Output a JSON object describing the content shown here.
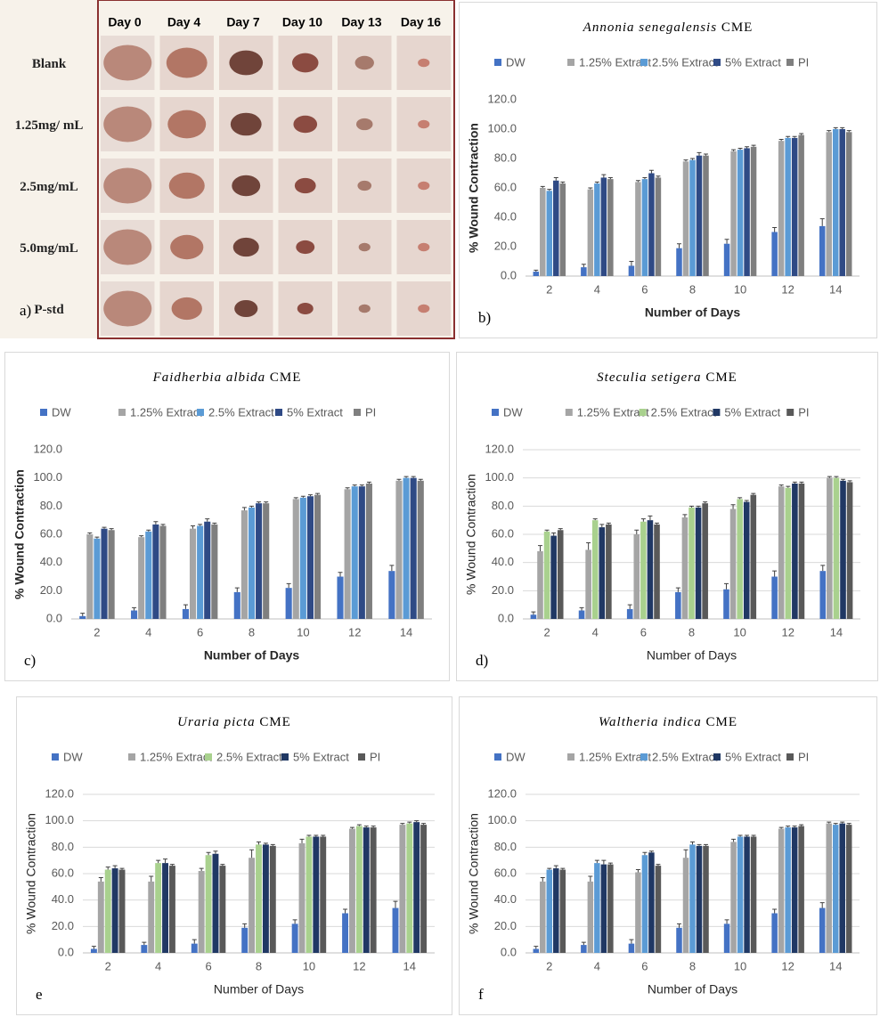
{
  "photo_grid": {
    "panel_label": "a)",
    "columns": [
      "Day 0",
      "Day 4",
      "Day 7",
      "Day 10",
      "Day 13",
      "Day 16"
    ],
    "rows": [
      "Blank",
      "1.25mg/ mL",
      "2.5mg/mL",
      "5.0mg/mL",
      "P-std"
    ]
  },
  "chart_data": [
    {
      "type": "bar",
      "title": {
        "species": "Annonia senegalensis",
        "suffix": "CME"
      },
      "panel_label": "b)",
      "x_label": "Number of Days",
      "y_label": "% Wound Contraction",
      "grid": false,
      "categories": [
        "2",
        "4",
        "6",
        "8",
        "10",
        "12",
        "14"
      ],
      "ylim": [
        0,
        120
      ],
      "yticks": [
        {
          "value": 0,
          "label": "0.0"
        },
        {
          "value": 20,
          "label": "20.0"
        },
        {
          "value": 40,
          "label": "40.0"
        },
        {
          "value": 60,
          "label": "60.0"
        },
        {
          "value": 80,
          "label": "80.0"
        },
        {
          "value": 100,
          "label": "100.0"
        },
        {
          "value": 120,
          "label": "120.0"
        }
      ],
      "series": [
        {
          "name": "DW",
          "color": "#4472c4",
          "values": [
            3,
            6,
            7,
            19,
            22,
            30,
            34
          ],
          "errors": [
            1,
            2,
            3,
            3,
            3,
            3,
            5
          ]
        },
        {
          "name": "1.25% Extract",
          "color": "#a5a5a5",
          "values": [
            60,
            59,
            64,
            78,
            85,
            92,
            98
          ],
          "errors": [
            1,
            1,
            1,
            1,
            1,
            1,
            1
          ]
        },
        {
          "name": "2.5% Extract",
          "color": "#5b9bd5",
          "values": [
            58,
            63,
            66,
            79,
            86,
            94,
            100
          ],
          "errors": [
            1,
            1,
            1,
            1,
            1,
            1,
            1
          ]
        },
        {
          "name": "5% Extract",
          "color": "#2f4a85",
          "values": [
            65,
            67,
            70,
            82,
            87,
            94,
            100
          ],
          "errors": [
            2,
            2,
            2,
            2,
            1,
            1,
            1
          ]
        },
        {
          "name": "PI",
          "color": "#7f7f7f",
          "values": [
            63,
            66,
            67,
            82,
            88,
            96,
            98
          ],
          "errors": [
            1,
            1,
            1,
            1,
            1,
            1,
            1
          ]
        }
      ]
    },
    {
      "type": "bar",
      "title": {
        "species": "Faidherbia albida",
        "suffix": "CME"
      },
      "panel_label": "c)",
      "x_label": "Number of Days",
      "y_label": "% Wound Contraction",
      "grid": false,
      "categories": [
        "2",
        "4",
        "6",
        "8",
        "10",
        "12",
        "14"
      ],
      "ylim": [
        0,
        120
      ],
      "yticks": [
        {
          "value": 0,
          "label": "0.0"
        },
        {
          "value": 20,
          "label": "20.0"
        },
        {
          "value": 40,
          "label": "40.0"
        },
        {
          "value": 60,
          "label": "60.0"
        },
        {
          "value": 80,
          "label": "80.0"
        },
        {
          "value": 100,
          "label": "100.0"
        },
        {
          "value": 120,
          "label": "120.0"
        }
      ],
      "series": [
        {
          "name": "DW",
          "color": "#4472c4",
          "values": [
            2,
            6,
            7,
            19,
            22,
            30,
            34
          ],
          "errors": [
            2,
            2,
            3,
            3,
            3,
            3,
            4
          ]
        },
        {
          "name": "1.25% Extract",
          "color": "#a5a5a5",
          "values": [
            60,
            58,
            64,
            77,
            85,
            92,
            98
          ],
          "errors": [
            1,
            1,
            2,
            2,
            1,
            1,
            1
          ]
        },
        {
          "name": "2.5% Extract",
          "color": "#5b9bd5",
          "values": [
            57,
            62,
            66,
            79,
            86,
            94,
            100
          ],
          "errors": [
            1,
            1,
            1,
            1,
            1,
            1,
            1
          ]
        },
        {
          "name": "5% Extract",
          "color": "#2f4a85",
          "values": [
            64,
            67,
            69,
            82,
            87,
            94,
            100
          ],
          "errors": [
            1,
            2,
            2,
            1,
            1,
            1,
            1
          ]
        },
        {
          "name": "PI",
          "color": "#7f7f7f",
          "values": [
            63,
            66,
            67,
            82,
            88,
            96,
            98
          ],
          "errors": [
            1,
            1,
            1,
            1,
            1,
            1,
            1
          ]
        }
      ]
    },
    {
      "type": "bar",
      "title": {
        "species": "Steculia setigera",
        "suffix": "CME"
      },
      "panel_label": "d)",
      "x_label": "Number of Days",
      "y_label": "% Wound Contraction",
      "grid": true,
      "categories": [
        "2",
        "4",
        "6",
        "8",
        "10",
        "12",
        "14"
      ],
      "ylim": [
        0,
        120
      ],
      "yticks": [
        {
          "value": 0,
          "label": "0.0"
        },
        {
          "value": 20,
          "label": "20.0"
        },
        {
          "value": 40,
          "label": "40.0"
        },
        {
          "value": 60,
          "label": "60.0"
        },
        {
          "value": 80,
          "label": "80.0"
        },
        {
          "value": 100,
          "label": "100.0"
        },
        {
          "value": 120,
          "label": "120.0"
        }
      ],
      "series": [
        {
          "name": "DW",
          "color": "#4472c4",
          "values": [
            3,
            6,
            7,
            19,
            21,
            30,
            34
          ],
          "errors": [
            2,
            2,
            3,
            3,
            4,
            4,
            4
          ]
        },
        {
          "name": "1.25% Extract",
          "color": "#a5a5a5",
          "values": [
            48,
            49,
            60,
            72,
            78,
            94,
            100
          ],
          "errors": [
            4,
            5,
            3,
            2,
            3,
            1,
            1
          ]
        },
        {
          "name": "2.5% Extract",
          "color": "#a9d18e",
          "values": [
            62,
            70,
            69,
            79,
            85,
            93,
            100
          ],
          "errors": [
            1,
            1,
            2,
            1,
            1,
            1,
            1
          ]
        },
        {
          "name": "5% Extract",
          "color": "#203864",
          "values": [
            59,
            65,
            70,
            79,
            83,
            96,
            98
          ],
          "errors": [
            2,
            2,
            3,
            1,
            1,
            1,
            1
          ]
        },
        {
          "name": "PI",
          "color": "#595959",
          "values": [
            63,
            67,
            67,
            82,
            88,
            96,
            97
          ],
          "errors": [
            1,
            1,
            1,
            1,
            1,
            1,
            1
          ]
        }
      ]
    },
    {
      "type": "bar",
      "title": {
        "species": "Uraria picta",
        "suffix": "CME"
      },
      "panel_label": "e",
      "x_label": "Number of Days",
      "y_label": "% Wound Contraction",
      "grid": true,
      "categories": [
        "2",
        "4",
        "6",
        "8",
        "10",
        "12",
        "14"
      ],
      "ylim": [
        0,
        120
      ],
      "yticks": [
        {
          "value": 0,
          "label": "0.0"
        },
        {
          "value": 20,
          "label": "20.0"
        },
        {
          "value": 40,
          "label": "40.0"
        },
        {
          "value": 60,
          "label": "60.0"
        },
        {
          "value": 80,
          "label": "80.0"
        },
        {
          "value": 100,
          "label": "100.0"
        },
        {
          "value": 120,
          "label": "120.0"
        }
      ],
      "series": [
        {
          "name": "DW",
          "color": "#4472c4",
          "values": [
            3,
            6,
            7,
            19,
            22,
            30,
            34
          ],
          "errors": [
            2,
            2,
            3,
            3,
            3,
            3,
            5
          ]
        },
        {
          "name": "1.25% Extract",
          "color": "#a5a5a5",
          "values": [
            54,
            54,
            62,
            72,
            83,
            94,
            97
          ],
          "errors": [
            3,
            4,
            2,
            6,
            3,
            1,
            1
          ]
        },
        {
          "name": "2.5% Extract",
          "color": "#a9d18e",
          "values": [
            63,
            68,
            74,
            82,
            88,
            96,
            98
          ],
          "errors": [
            2,
            2,
            2,
            2,
            1,
            1,
            1
          ]
        },
        {
          "name": "5% Extract",
          "color": "#203864",
          "values": [
            64,
            68,
            75,
            82,
            88,
            95,
            99
          ],
          "errors": [
            2,
            3,
            2,
            1,
            1,
            1,
            1
          ]
        },
        {
          "name": "PI",
          "color": "#595959",
          "values": [
            63,
            66,
            66,
            81,
            88,
            95,
            97
          ],
          "errors": [
            1,
            1,
            1,
            1,
            1,
            1,
            1
          ]
        }
      ]
    },
    {
      "type": "bar",
      "title": {
        "species": "Waltheria indica",
        "suffix": "CME"
      },
      "panel_label": "f",
      "x_label": "Number of Days",
      "y_label": "% Wound Contraction",
      "grid": true,
      "categories": [
        "2",
        "4",
        "6",
        "8",
        "10",
        "12",
        "14"
      ],
      "ylim": [
        0,
        120
      ],
      "yticks": [
        {
          "value": 0,
          "label": "0.0"
        },
        {
          "value": 20,
          "label": "20.0"
        },
        {
          "value": 40,
          "label": "40.0"
        },
        {
          "value": 60,
          "label": "60.0"
        },
        {
          "value": 80,
          "label": "80.0"
        },
        {
          "value": 100,
          "label": "100.0"
        },
        {
          "value": 120,
          "label": "120.0"
        }
      ],
      "series": [
        {
          "name": "DW",
          "color": "#4472c4",
          "values": [
            3,
            6,
            7,
            19,
            22,
            30,
            34
          ],
          "errors": [
            2,
            2,
            3,
            3,
            3,
            3,
            4
          ]
        },
        {
          "name": "1.25% Extract",
          "color": "#a5a5a5",
          "values": [
            54,
            54,
            61,
            72,
            84,
            94,
            98
          ],
          "errors": [
            3,
            4,
            2,
            6,
            2,
            1,
            1
          ]
        },
        {
          "name": "2.5% Extract",
          "color": "#5b9bd5",
          "values": [
            63,
            68,
            74,
            82,
            88,
            95,
            97
          ],
          "errors": [
            1,
            2,
            2,
            2,
            1,
            1,
            1
          ]
        },
        {
          "name": "5% Extract",
          "color": "#203864",
          "values": [
            64,
            67,
            76,
            81,
            88,
            95,
            98
          ],
          "errors": [
            2,
            3,
            1,
            1,
            1,
            1,
            1
          ]
        },
        {
          "name": "PI",
          "color": "#595959",
          "values": [
            63,
            67,
            66,
            81,
            88,
            96,
            97
          ],
          "errors": [
            1,
            1,
            1,
            1,
            1,
            1,
            1
          ]
        }
      ]
    }
  ]
}
